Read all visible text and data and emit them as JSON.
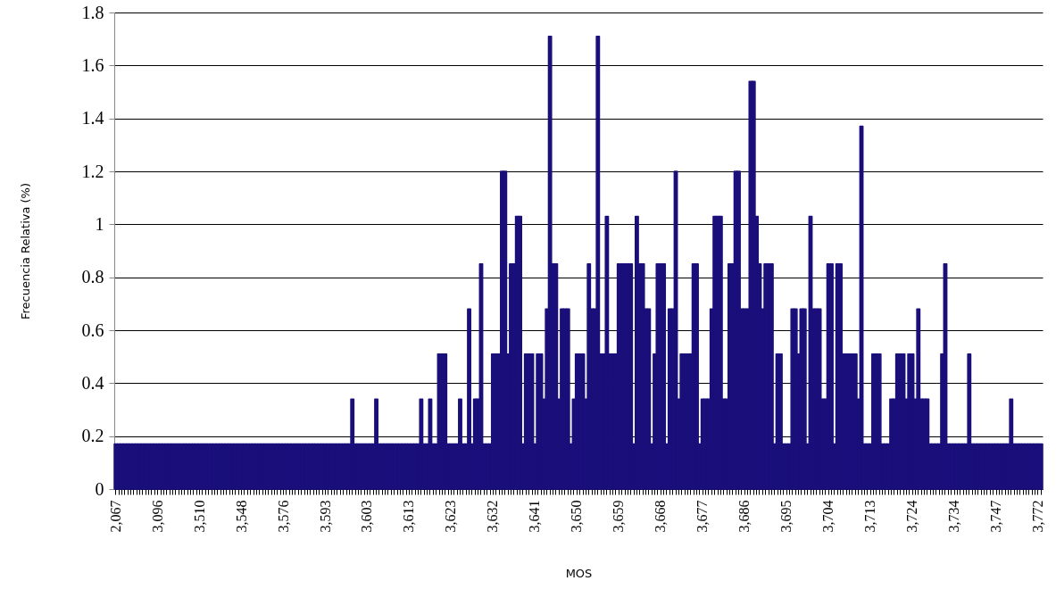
{
  "chart_data": {
    "type": "bar",
    "xlabel": "MOS",
    "ylabel": "Frecuencia Relativa (%)",
    "color": "#1a0f7a",
    "grid": "y",
    "ylim": [
      0,
      1.8
    ],
    "yticks": [
      0,
      0.2,
      0.4,
      0.6,
      0.8,
      1,
      1.2,
      1.4,
      1.6,
      1.8
    ],
    "categories": [
      "2,067",
      null,
      null,
      null,
      null,
      null,
      null,
      null,
      null,
      null,
      null,
      null,
      null,
      null,
      "3,096",
      null,
      null,
      null,
      null,
      null,
      null,
      null,
      null,
      null,
      null,
      null,
      null,
      null,
      "3,510",
      null,
      null,
      null,
      null,
      null,
      null,
      null,
      null,
      null,
      null,
      null,
      null,
      null,
      "3,548",
      null,
      null,
      null,
      null,
      null,
      null,
      null,
      null,
      null,
      null,
      null,
      null,
      null,
      "3,576",
      null,
      null,
      null,
      null,
      null,
      null,
      null,
      null,
      null,
      null,
      null,
      null,
      null,
      "3,593",
      null,
      null,
      null,
      null,
      null,
      null,
      null,
      null,
      null,
      null,
      null,
      null,
      null,
      "3,603",
      null,
      null,
      null,
      null,
      null,
      null,
      null,
      null,
      null,
      null,
      null,
      null,
      null,
      "3,613",
      null,
      null,
      null,
      null,
      null,
      null,
      null,
      null,
      null,
      null,
      null,
      null,
      null,
      "3,623",
      null,
      null,
      null,
      null,
      null,
      null,
      null,
      null,
      null,
      null,
      null,
      null,
      null,
      "3,632",
      null,
      null,
      null,
      null,
      null,
      null,
      null,
      null,
      null,
      null,
      null,
      null,
      null,
      "3,641",
      null,
      null,
      null,
      null,
      null,
      null,
      null,
      null,
      null,
      null,
      null,
      null,
      null,
      "3,650",
      null,
      null,
      null,
      null,
      null,
      null,
      null,
      null,
      null,
      null,
      null,
      null,
      null,
      "3,659",
      null,
      null,
      null,
      null,
      null,
      null,
      null,
      null,
      null,
      null,
      null,
      null,
      null,
      "3,668",
      null,
      null,
      null,
      null,
      null,
      null,
      null,
      null,
      null,
      null,
      null,
      null,
      null,
      "3,677",
      null,
      null,
      null,
      null,
      null,
      null,
      null,
      null,
      null,
      null,
      null,
      null,
      null,
      "3,686",
      null,
      null,
      null,
      null,
      null,
      null,
      null,
      null,
      null,
      null,
      null,
      null,
      null,
      "3,695",
      null,
      null,
      null,
      null,
      null,
      null,
      null,
      null,
      null,
      null,
      null,
      null,
      null,
      "3,704",
      null,
      null,
      null,
      null,
      null,
      null,
      null,
      null,
      null,
      null,
      null,
      null,
      null,
      "3,713",
      null,
      null,
      null,
      null,
      null,
      null,
      null,
      null,
      null,
      null,
      null,
      null,
      null,
      "3,724",
      null,
      null,
      null,
      null,
      null,
      null,
      null,
      null,
      null,
      null,
      null,
      null,
      null,
      "3,734",
      null,
      null,
      null,
      null,
      null,
      null,
      null,
      null,
      null,
      null,
      null,
      null,
      null,
      "3,747",
      null,
      null,
      null,
      null,
      null,
      null,
      null,
      null,
      null,
      null,
      null,
      null,
      null,
      "3,772",
      null
    ],
    "values": [
      0.17,
      0.17,
      0.17,
      0.17,
      0.17,
      0.17,
      0.17,
      0.17,
      0.17,
      0.17,
      0.17,
      0.17,
      0.17,
      0.17,
      0.17,
      0.17,
      0.17,
      0.17,
      0.17,
      0.17,
      0.17,
      0.17,
      0.17,
      0.17,
      0.17,
      0.17,
      0.17,
      0.17,
      0.17,
      0.17,
      0.17,
      0.17,
      0.17,
      0.17,
      0.17,
      0.17,
      0.17,
      0.17,
      0.17,
      0.17,
      0.17,
      0.17,
      0.17,
      0.17,
      0.17,
      0.17,
      0.17,
      0.17,
      0.17,
      0.17,
      0.17,
      0.17,
      0.17,
      0.17,
      0.17,
      0.17,
      0.17,
      0.17,
      0.17,
      0.17,
      0.17,
      0.17,
      0.17,
      0.17,
      0.17,
      0.17,
      0.17,
      0.17,
      0.17,
      0.17,
      0.17,
      0.17,
      0.17,
      0.17,
      0.17,
      0.17,
      0.17,
      0.17,
      0.17,
      0.34,
      0.17,
      0.17,
      0.17,
      0.17,
      0.17,
      0.17,
      0.17,
      0.34,
      0.17,
      0.17,
      0.17,
      0.17,
      0.17,
      0.17,
      0.17,
      0.17,
      0.17,
      0.17,
      0.17,
      0.17,
      0.17,
      0.17,
      0.34,
      0.17,
      0.17,
      0.34,
      0.17,
      0.17,
      0.51,
      0.51,
      0.51,
      0.17,
      0.17,
      0.17,
      0.17,
      0.34,
      0.17,
      0.17,
      0.68,
      0.17,
      0.34,
      0.34,
      0.85,
      0.17,
      0.17,
      0.17,
      0.51,
      0.51,
      0.51,
      1.2,
      1.2,
      0.51,
      0.85,
      0.85,
      1.03,
      1.03,
      0.17,
      0.51,
      0.51,
      0.51,
      0.17,
      0.51,
      0.51,
      0.34,
      0.68,
      1.71,
      0.85,
      0.85,
      0.34,
      0.68,
      0.68,
      0.68,
      0.17,
      0.34,
      0.51,
      0.51,
      0.51,
      0.34,
      0.85,
      0.68,
      0.68,
      1.71,
      0.51,
      0.51,
      1.03,
      0.51,
      0.51,
      0.51,
      0.85,
      0.85,
      0.85,
      0.85,
      0.85,
      0.17,
      1.03,
      0.85,
      0.85,
      0.68,
      0.68,
      0.17,
      0.51,
      0.85,
      0.85,
      0.85,
      0.17,
      0.68,
      0.68,
      1.2,
      0.34,
      0.51,
      0.51,
      0.51,
      0.51,
      0.85,
      0.85,
      0.17,
      0.34,
      0.34,
      0.34,
      0.68,
      1.03,
      1.03,
      1.03,
      0.34,
      0.34,
      0.85,
      0.85,
      1.2,
      1.2,
      0.68,
      0.68,
      0.68,
      1.54,
      1.54,
      1.03,
      0.85,
      0.68,
      0.85,
      0.85,
      0.85,
      0.17,
      0.51,
      0.51,
      0.17,
      0.17,
      0.17,
      0.68,
      0.68,
      0.51,
      0.68,
      0.68,
      0.17,
      1.03,
      0.68,
      0.68,
      0.68,
      0.34,
      0.34,
      0.85,
      0.85,
      0.17,
      0.85,
      0.85,
      0.51,
      0.51,
      0.51,
      0.51,
      0.51,
      0.34,
      1.37,
      0.17,
      0.17,
      0.17,
      0.51,
      0.51,
      0.51,
      0.17,
      0.17,
      0.17,
      0.34,
      0.34,
      0.51,
      0.51,
      0.51,
      0.34,
      0.51,
      0.51,
      0.34,
      0.68,
      0.34,
      0.34,
      0.34,
      0.17,
      0.17,
      0.17,
      0.17,
      0.51,
      0.85,
      0.17,
      0.17,
      0.17,
      0.17,
      0.17,
      0.17,
      0.17,
      0.51,
      0.17,
      0.17,
      0.17,
      0.17,
      0.17,
      0.17,
      0.17,
      0.17,
      0.17,
      0.17,
      0.17,
      0.17,
      0.17,
      0.34,
      0.17,
      0.17,
      0.17,
      0.17,
      0.17,
      0.17,
      0.17,
      0.17,
      0.17,
      0.17
    ]
  }
}
